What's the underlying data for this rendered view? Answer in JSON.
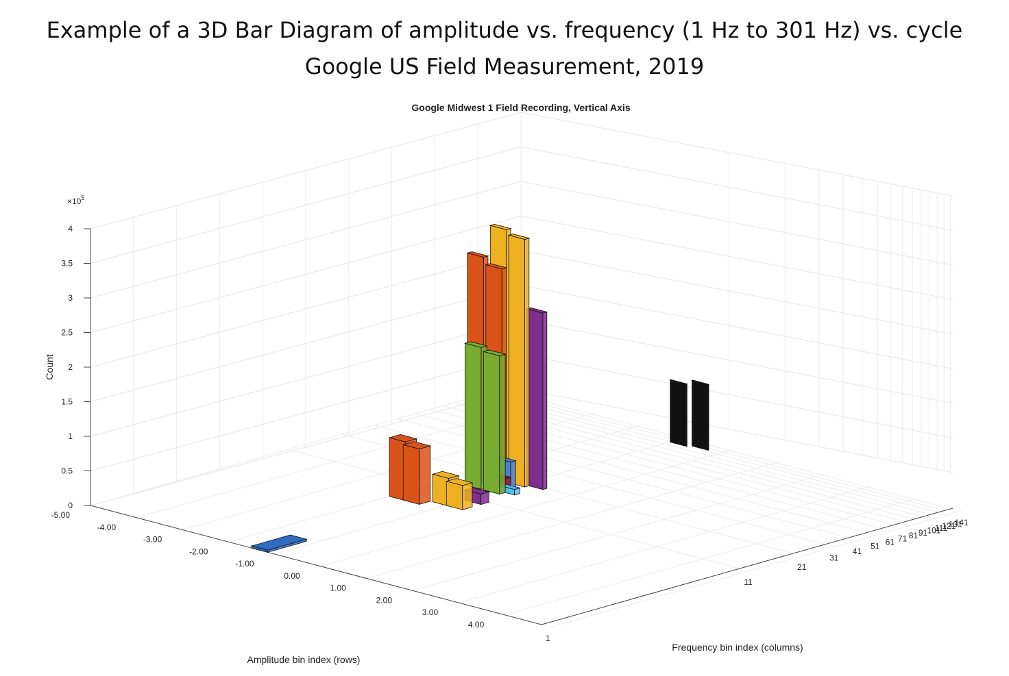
{
  "slide": {
    "title_line1": "Example of a 3D Bar Diagram of amplitude vs. frequency (1 Hz to 301 Hz) vs. cycle",
    "title_line2": "Google US Field Measurement, 2019"
  },
  "chart_data": {
    "type": "bar3d",
    "title": "Google Midwest 1 Field Recording, Vertical Axis",
    "xlabel": "Amplitude bin index (rows)",
    "ylabel": "Frequency bin index (columns)",
    "zlabel": "Count",
    "z_exponent": "×10^5",
    "z_exponent_base": "×10",
    "z_exponent_power": "5",
    "zlim": [
      0,
      400000
    ],
    "z_ticks": [
      "0",
      "0.5",
      "1",
      "1.5",
      "2",
      "2.5",
      "3",
      "3.5",
      "4"
    ],
    "amplitude_ticks": [
      "-5.00",
      "-4.00",
      "-3.00",
      "-2.00",
      "-1.00",
      "0.00",
      "1.00",
      "2.00",
      "3.00",
      "4.00"
    ],
    "frequency_ticks": [
      "1",
      "11",
      "21",
      "31",
      "41",
      "51",
      "61",
      "71",
      "81",
      "91",
      "101",
      "111",
      "121",
      "131",
      "141"
    ],
    "frequency_ticks_note": "labels beyond 81 overlap and are partly illegible in the original",
    "grid": true,
    "series": [
      {
        "color": "#2F6BC0",
        "amplitude": -1.5,
        "frequency": 1,
        "count": 3000
      },
      {
        "color": "#D95319",
        "amplitude": -2.0,
        "frequency": 7,
        "count": 85000
      },
      {
        "color": "#D95319",
        "amplitude": -1.7,
        "frequency": 7,
        "count": 80000
      },
      {
        "color": "#EDB120",
        "amplitude": -1.3,
        "frequency": 8,
        "count": 40000
      },
      {
        "color": "#EDB120",
        "amplitude": -1.0,
        "frequency": 8,
        "count": 35000
      },
      {
        "color": "#7E2F8E",
        "amplitude": -1.0,
        "frequency": 10,
        "count": 15000
      },
      {
        "color": "#77AC30",
        "amplitude": -1.6,
        "frequency": 14,
        "count": 205000
      },
      {
        "color": "#77AC30",
        "amplitude": -1.2,
        "frequency": 14,
        "count": 200000
      },
      {
        "color": "#4D7FD0",
        "amplitude": -1.6,
        "frequency": 16,
        "count": 45000
      },
      {
        "color": "#4D7FD0",
        "amplitude": -1.2,
        "frequency": 16,
        "count": 42000
      },
      {
        "color": "#D95319",
        "amplitude": -2.0,
        "frequency": 18,
        "count": 320000
      },
      {
        "color": "#D95319",
        "amplitude": -1.6,
        "frequency": 18,
        "count": 310000
      },
      {
        "color": "#EDB120",
        "amplitude": -1.6,
        "frequency": 19,
        "count": 365000
      },
      {
        "color": "#EDB120",
        "amplitude": -1.2,
        "frequency": 19,
        "count": 358000
      },
      {
        "color": "#7E2F8E",
        "amplitude": -0.9,
        "frequency": 20,
        "count": 255000
      },
      {
        "color": "#A2142F",
        "amplitude": -1.2,
        "frequency": 15,
        "count": 20000
      },
      {
        "color": "#4DBEEE",
        "amplitude": -1.0,
        "frequency": 15,
        "count": 8000
      },
      {
        "color": "#111111",
        "amplitude": -1.0,
        "frequency": 120,
        "count": 90000
      },
      {
        "color": "#111111",
        "amplitude": -0.6,
        "frequency": 125,
        "count": 95000
      }
    ]
  }
}
